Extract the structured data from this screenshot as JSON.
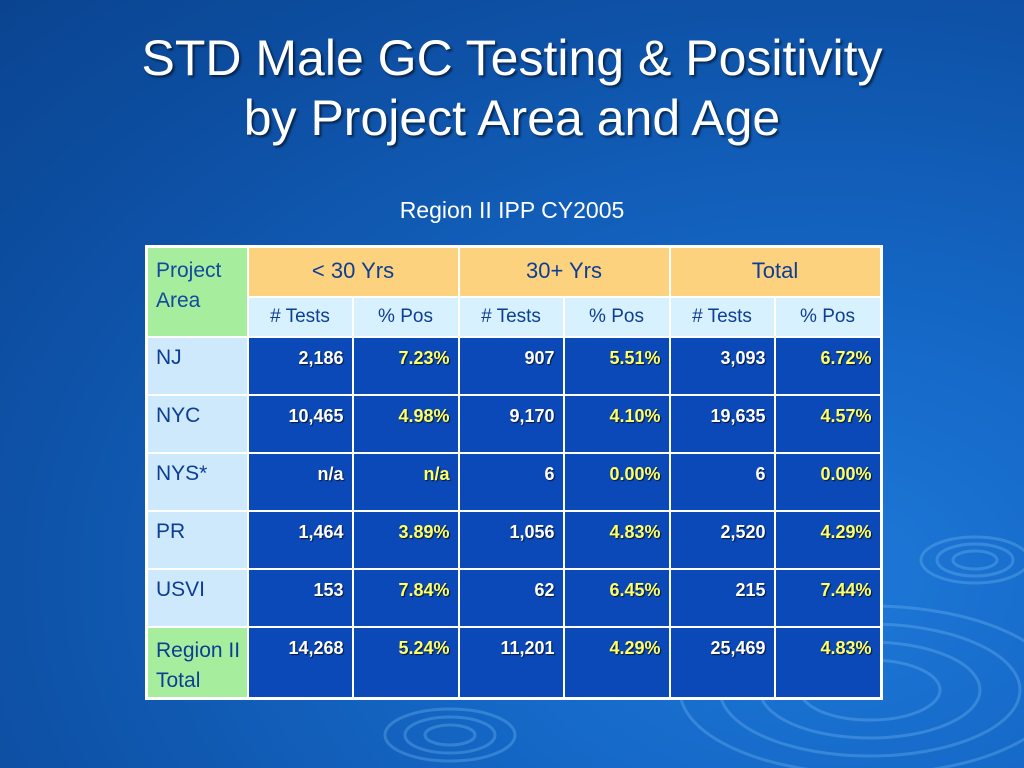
{
  "title_line1": "STD Male GC Testing & Positivity",
  "title_line2": "by Project Area and Age",
  "subtitle": "Region II IPP CY2005",
  "table": {
    "area_header": "Project Area",
    "groups": [
      "< 30 Yrs",
      "30+ Yrs",
      "Total"
    ],
    "sub_headers": [
      "# Tests",
      "% Pos",
      "# Tests",
      "% Pos",
      "# Tests",
      "% Pos"
    ],
    "rows": [
      {
        "area": "NJ",
        "values": [
          "2,186",
          "7.23%",
          "907",
          "5.51%",
          "3,093",
          "6.72%"
        ]
      },
      {
        "area": "NYC",
        "values": [
          "10,465",
          "4.98%",
          "9,170",
          "4.10%",
          "19,635",
          "4.57%"
        ]
      },
      {
        "area": "NYS*",
        "values": [
          "n/a",
          "n/a",
          "6",
          "0.00%",
          "6",
          "0.00%"
        ]
      },
      {
        "area": "PR",
        "values": [
          "1,464",
          "3.89%",
          "1,056",
          "4.83%",
          "2,520",
          "4.29%"
        ]
      },
      {
        "area": "USVI",
        "values": [
          "153",
          "7.84%",
          "62",
          "6.45%",
          "215",
          "7.44%"
        ]
      },
      {
        "area": "Region II Total",
        "values": [
          "14,268",
          "5.24%",
          "11,201",
          "4.29%",
          "25,469",
          "4.83%"
        ]
      }
    ]
  },
  "colors": {
    "background": "#1466c4",
    "area_header": "#a6ee9d",
    "group_header": "#fcd27f",
    "sub_header": "#d7f1ff",
    "row_label": "#cde9fb",
    "data_cell": "#0b49b8",
    "percent_text": "#ffff66"
  }
}
